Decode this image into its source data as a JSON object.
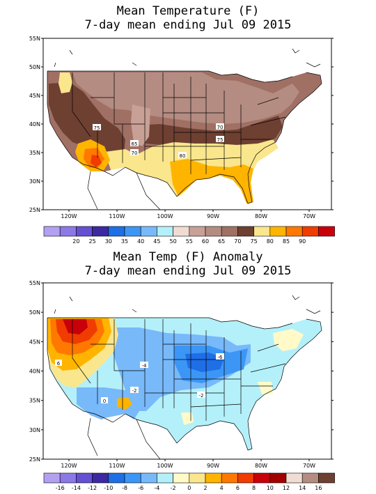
{
  "panels": [
    {
      "title_line1": "Mean Temperature (F)",
      "title_line2": "7-day mean ending Jul 09 2015",
      "lat_labels": [
        "55N",
        "50N",
        "45N",
        "40N",
        "35N",
        "30N",
        "25N"
      ],
      "lon_labels": [
        "120W",
        "110W",
        "100W",
        "90W",
        "80W",
        "70W"
      ],
      "contour_labels": [
        "75",
        "70",
        "65",
        "70",
        "75",
        "80",
        "70",
        "75"
      ],
      "legend": {
        "colors": [
          "#b4a0f0",
          "#8c78e6",
          "#6450d2",
          "#3c28a0",
          "#1e6ee6",
          "#3c96f5",
          "#78b9fa",
          "#b4f0fa",
          "#f0dcd2",
          "#c8a096",
          "#b48c82",
          "#a07064",
          "#6e4032",
          "#fae68c",
          "#ffb400",
          "#ff7800",
          "#f03c00",
          "#c8000a"
        ],
        "labels": [
          "20",
          "25",
          "30",
          "35",
          "40",
          "45",
          "50",
          "55",
          "60",
          "65",
          "70",
          "75",
          "80",
          "85",
          "90"
        ]
      }
    },
    {
      "title_line1": "Mean Temp (F) Anomaly",
      "title_line2": "7-day mean ending Jul 09 2015",
      "lat_labels": [
        "55N",
        "50N",
        "45N",
        "40N",
        "35N",
        "30N",
        "25N"
      ],
      "lon_labels": [
        "120W",
        "110W",
        "100W",
        "90W",
        "80W",
        "70W"
      ],
      "contour_labels": [
        "6",
        "-4",
        "-6",
        "-2",
        "-2",
        "0",
        "2"
      ],
      "legend": {
        "colors": [
          "#b4a0f0",
          "#8c78e6",
          "#6450d2",
          "#3c28a0",
          "#1e6ee6",
          "#3c96f5",
          "#78b9fa",
          "#b4f0fa",
          "#fffac8",
          "#fae68c",
          "#ffb400",
          "#ff7800",
          "#f03c00",
          "#c8000a",
          "#a00000",
          "#f0dcd2",
          "#b48c82",
          "#6e4032"
        ],
        "labels": [
          "-16",
          "-14",
          "-12",
          "-10",
          "-8",
          "-6",
          "-4",
          "-2",
          "0",
          "2",
          "4",
          "6",
          "8",
          "10",
          "12",
          "14",
          "16"
        ]
      }
    }
  ]
}
